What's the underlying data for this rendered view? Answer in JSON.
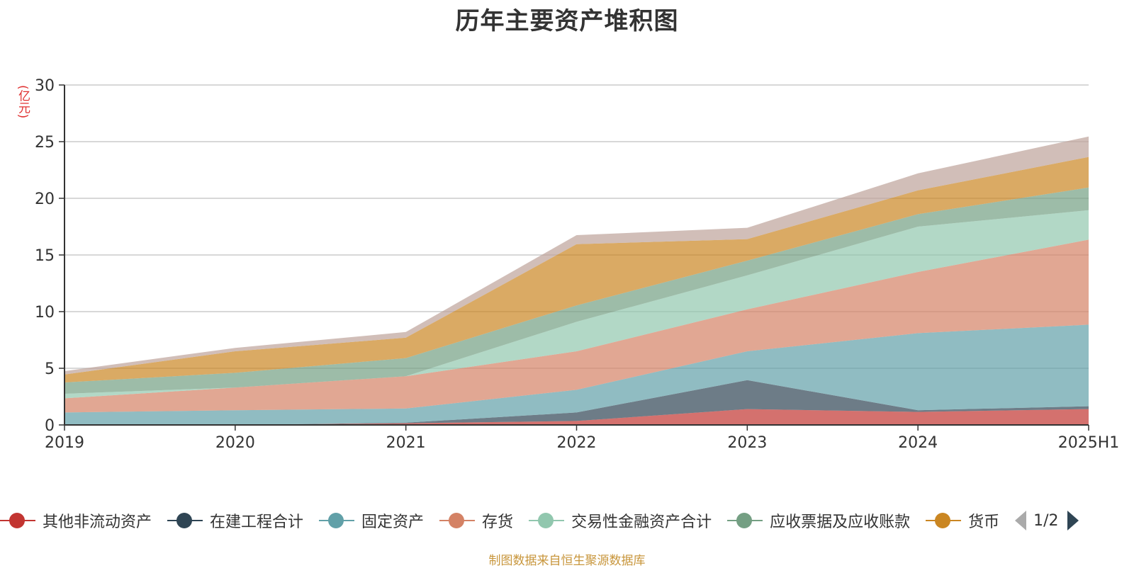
{
  "chart_data": {
    "type": "area",
    "stacked": true,
    "title": "历年主要资产堆积图",
    "ylabel": "(亿元)",
    "ylim": [
      0,
      30
    ],
    "y_ticks": [
      0,
      5,
      10,
      15,
      20,
      25,
      30
    ],
    "grid": true,
    "legend_position": "bottom",
    "categories": [
      "2019",
      "2020",
      "2021",
      "2022",
      "2023",
      "2024",
      "2025H1"
    ],
    "series": [
      {
        "name": "其他非流动资产",
        "color": "#c23531",
        "values": [
          0.0,
          0.0,
          0.15,
          0.35,
          1.4,
          1.15,
          1.4
        ]
      },
      {
        "name": "在建工程合计",
        "color": "#2f4554",
        "values": [
          0.0,
          0.0,
          0.05,
          0.75,
          2.55,
          0.15,
          0.25
        ]
      },
      {
        "name": "固定资产",
        "color": "#61a0a8",
        "values": [
          1.1,
          1.3,
          1.25,
          2.0,
          2.55,
          6.8,
          7.2
        ]
      },
      {
        "name": "存货",
        "color": "#d48265",
        "values": [
          1.25,
          2.0,
          2.85,
          3.4,
          3.7,
          5.4,
          7.5
        ]
      },
      {
        "name": "交易性金融资产合计",
        "color": "#91c7ae",
        "values": [
          0.4,
          0.0,
          0.0,
          2.6,
          3.0,
          4.0,
          2.6
        ]
      },
      {
        "name": "应收票据及应收账款",
        "color": "#749f83",
        "values": [
          1.0,
          1.3,
          1.6,
          1.45,
          1.3,
          1.1,
          2.0
        ]
      },
      {
        "name": "货币",
        "color": "#ca8622",
        "values": [
          0.7,
          1.9,
          1.8,
          5.4,
          1.9,
          2.1,
          2.7
        ]
      },
      {
        "name": "",
        "color": "#bda29a",
        "values": [
          0.3,
          0.3,
          0.5,
          0.8,
          1.0,
          1.5,
          1.8
        ]
      }
    ]
  },
  "legend": {
    "page_text": "1/2"
  },
  "footer": {
    "source": "制图数据来自恒生聚源数据库"
  }
}
